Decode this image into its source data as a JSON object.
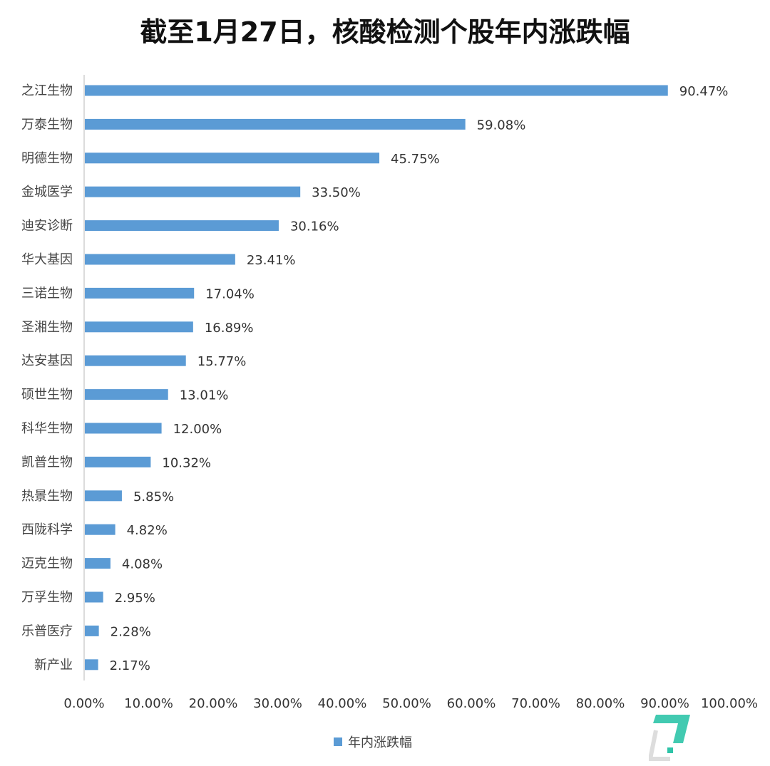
{
  "chart_data": {
    "type": "bar",
    "orientation": "horizontal",
    "title": "截至1月27日，核酸检测个股年内涨跌幅",
    "categories": [
      "之江生物",
      "万泰生物",
      "明德生物",
      "金城医学",
      "迪安诊断",
      "华大基因",
      "三诺生物",
      "圣湘生物",
      "达安基因",
      "硕世生物",
      "科华生物",
      "凯普生物",
      "热景生物",
      "西陇科学",
      "迈克生物",
      "万孚生物",
      "乐普医疗",
      "新产业"
    ],
    "values": [
      90.47,
      59.08,
      45.75,
      33.5,
      30.16,
      23.41,
      17.04,
      16.89,
      15.77,
      13.01,
      12.0,
      10.32,
      5.85,
      4.82,
      4.08,
      2.95,
      2.28,
      2.17
    ],
    "value_labels": [
      "90.47%",
      "59.08%",
      "45.75%",
      "33.50%",
      "30.16%",
      "23.41%",
      "17.04%",
      "16.89%",
      "15.77%",
      "13.01%",
      "12.00%",
      "10.32%",
      "5.85%",
      "4.82%",
      "4.08%",
      "2.95%",
      "2.28%",
      "2.17%"
    ],
    "xlim": [
      0,
      100
    ],
    "xticks": [
      "0.00%",
      "10.00%",
      "20.00%",
      "30.00%",
      "40.00%",
      "50.00%",
      "60.00%",
      "70.00%",
      "80.00%",
      "90.00%",
      "100.00%"
    ],
    "legend": {
      "label": "年内涨跌幅",
      "position": "bottom"
    },
    "color": "#5b9bd5",
    "grid": false
  },
  "watermark": {
    "text": "钛媒体",
    "color": "#2ec4a8"
  }
}
